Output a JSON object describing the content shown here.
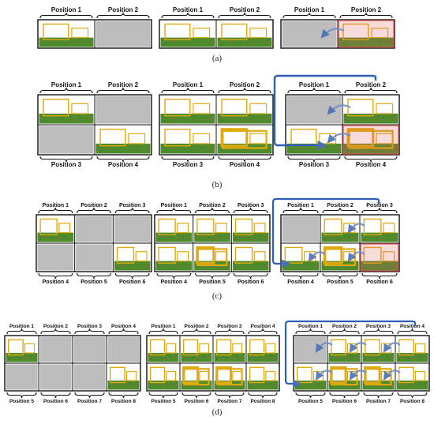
{
  "colors": {
    "empty_cell": "#bdbdbd",
    "scene_sky": "#ffffff",
    "grass": "#4f8a2c",
    "grass_dark": "#3f6f22",
    "box": "#e0a90f",
    "box_fill": "#fbe9b5",
    "highlight": "#e05a5a",
    "arrow": "#6f8fc8",
    "loop": "#2f5fb5",
    "border": "#111111"
  },
  "icons": [
    "curved-arrow-icon",
    "return-loop-icon",
    "brace-icon",
    "tracking-box-icon"
  ],
  "panels": [
    {
      "caption": "(a)",
      "rows": 1,
      "cols": 2,
      "labels": [
        "Position 1",
        "Position 2"
      ]
    },
    {
      "caption": "(b)",
      "rows": 2,
      "cols": 2,
      "labels": [
        "Position 1",
        "Position 2",
        "Position 3",
        "Position 4"
      ]
    },
    {
      "caption": "(c)",
      "rows": 2,
      "cols": 3,
      "labels": [
        "Position 1",
        "Position 2",
        "Position 3",
        "Position 4",
        "Position 5",
        "Position 6"
      ]
    },
    {
      "caption": "(d)",
      "rows": 2,
      "cols": 4,
      "labels": [
        "Position 1",
        "Position 2",
        "Position 3",
        "Position 4",
        "Position 5",
        "Position 6",
        "Position 7",
        "Position 8"
      ]
    }
  ]
}
